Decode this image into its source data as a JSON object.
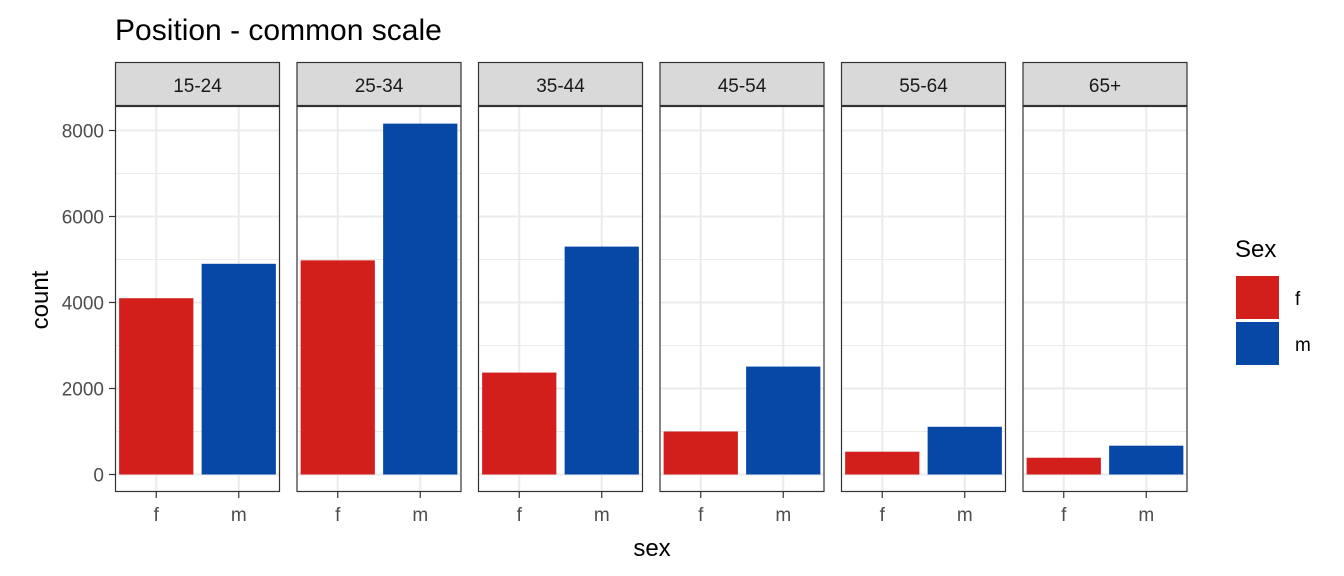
{
  "chart_data": {
    "type": "bar",
    "title": "Position - common scale",
    "xlabel": "sex",
    "ylabel": "count",
    "ylim": [
      0,
      8600
    ],
    "yticks": [
      0,
      2000,
      4000,
      6000,
      8000
    ],
    "x_categories": [
      "f",
      "m"
    ],
    "grid": true,
    "legend": {
      "title": "Sex",
      "position": "right",
      "entries": [
        {
          "label": "f",
          "color": "#D21F1B"
        },
        {
          "label": "m",
          "color": "#0747A6"
        }
      ]
    },
    "facets": [
      {
        "label": "15-24",
        "values": {
          "f": 4100,
          "m": 4900
        }
      },
      {
        "label": "25-34",
        "values": {
          "f": 4980,
          "m": 8160
        }
      },
      {
        "label": "35-44",
        "values": {
          "f": 2370,
          "m": 5300
        }
      },
      {
        "label": "45-54",
        "values": {
          "f": 1000,
          "m": 2510
        }
      },
      {
        "label": "55-64",
        "values": {
          "f": 530,
          "m": 1110
        }
      },
      {
        "label": "65+",
        "values": {
          "f": 390,
          "m": 670
        }
      }
    ]
  }
}
